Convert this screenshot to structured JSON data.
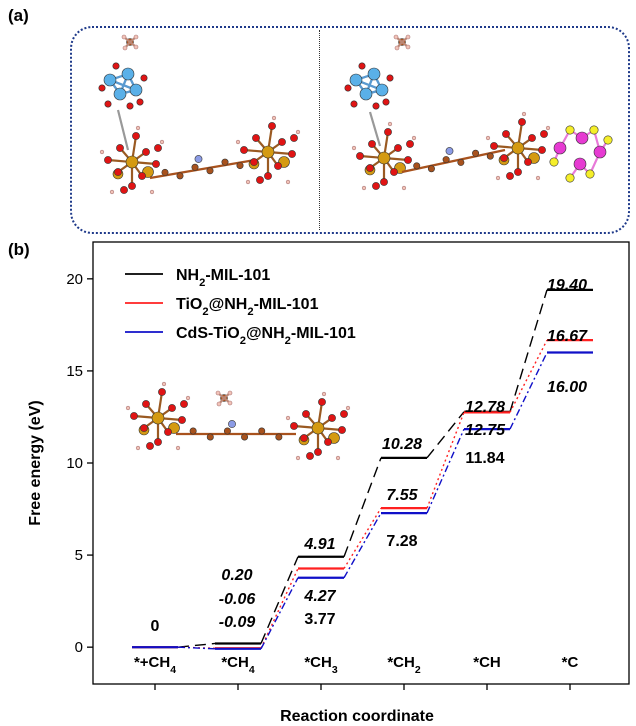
{
  "panel_labels": {
    "a": "(a)",
    "b": "(b)"
  },
  "chart_data": {
    "type": "line",
    "xlabel": "Reaction coordinate",
    "ylabel": "Free energy (eV)",
    "ylim": [
      -2,
      22
    ],
    "yticks": [
      0,
      5,
      10,
      15,
      20
    ],
    "categories": [
      "*+CH4",
      "*CH4",
      "*CH3",
      "*CH2",
      "*CH",
      "*C"
    ],
    "series": [
      {
        "name": "NH2-MIL-101",
        "color": "#000000",
        "dash": "11,6",
        "values": [
          0,
          0.2,
          4.91,
          10.28,
          12.78,
          19.4
        ]
      },
      {
        "name": "TiO2@NH2-MIL-101",
        "color": "#ff2020",
        "dash": "2,3",
        "values": [
          0,
          -0.06,
          4.27,
          7.55,
          12.75,
          16.67
        ]
      },
      {
        "name": "CdS-TiO2@NH2-MIL-101",
        "color": "#1010c8",
        "dash": "7,3,2,3",
        "values": [
          0,
          -0.09,
          3.77,
          7.28,
          11.84,
          16.0
        ]
      }
    ],
    "value_labels": [
      "0",
      "0.20",
      "-0.06",
      "-0.09",
      "4.91",
      "4.27",
      "3.77",
      "10.28",
      "7.55",
      "7.28",
      "12.78",
      "12.75",
      "11.84",
      "19.40",
      "16.67",
      "16.00"
    ]
  }
}
